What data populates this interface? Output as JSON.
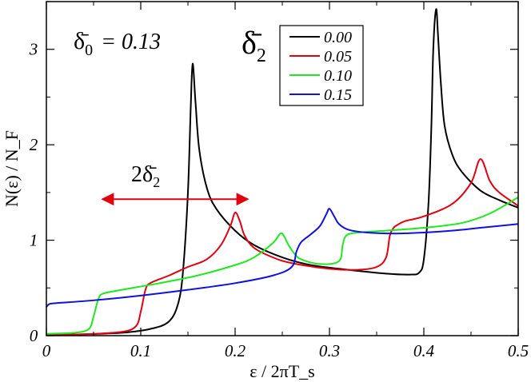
{
  "chart_data": {
    "type": "line",
    "xlabel": "ε / 2πT_s",
    "ylabel": "N(ε) / N_F",
    "xlim": [
      0,
      0.5
    ],
    "ylim": [
      0,
      3.5
    ],
    "x_ticks": [
      "0",
      "0.1",
      "0.2",
      "0.3",
      "0.4",
      "0.5"
    ],
    "y_ticks": [
      "0",
      "1",
      "2",
      "3"
    ],
    "x_tick_values": [
      0,
      0.1,
      0.2,
      0.3,
      0.4,
      0.5
    ],
    "y_tick_values": [
      0,
      1,
      2,
      3
    ],
    "grid": false,
    "legend_position": "top-right",
    "legend_title": "δ̄₂",
    "annotations": {
      "delta0_symbol": "δ̄",
      "delta0_sub": "0",
      "delta0_value": "= 0.13",
      "legend_symbol": "δ̄",
      "legend_sub": "2",
      "arrow_label_prefix": "2",
      "arrow_label_symbol": "δ̄",
      "arrow_label_sub": "2",
      "arrow_from_x": 0.1,
      "arrow_to_x": 0.2,
      "arrow_y": 1.43
    },
    "series": [
      {
        "name": "0.00",
        "color": "#000000",
        "x": [
          0,
          0.04,
          0.08,
          0.11,
          0.13,
          0.14,
          0.145,
          0.15,
          0.153,
          0.155,
          0.158,
          0.162,
          0.17,
          0.18,
          0.2,
          0.22,
          0.25,
          0.28,
          0.32,
          0.36,
          0.385,
          0.395,
          0.4,
          0.405,
          0.408,
          0.41,
          0.413,
          0.415,
          0.418,
          0.422,
          0.43,
          0.44,
          0.46,
          0.48,
          0.5
        ],
        "y": [
          0.01,
          0.015,
          0.03,
          0.07,
          0.15,
          0.35,
          0.7,
          1.5,
          2.4,
          2.85,
          2.45,
          1.95,
          1.55,
          1.33,
          1.1,
          0.95,
          0.82,
          0.74,
          0.69,
          0.65,
          0.64,
          0.66,
          0.8,
          1.4,
          2.2,
          3.0,
          3.42,
          3.15,
          2.65,
          2.2,
          1.9,
          1.72,
          1.52,
          1.42,
          1.34
        ]
      },
      {
        "name": "0.05",
        "color": "#e0000f",
        "x": [
          0,
          0.04,
          0.08,
          0.095,
          0.1,
          0.105,
          0.11,
          0.13,
          0.15,
          0.17,
          0.185,
          0.195,
          0.2,
          0.205,
          0.21,
          0.22,
          0.24,
          0.26,
          0.3,
          0.33,
          0.35,
          0.36,
          0.364,
          0.368,
          0.372,
          0.38,
          0.4,
          0.43,
          0.45,
          0.46,
          0.47,
          0.48,
          0.5
        ],
        "y": [
          0.01,
          0.015,
          0.04,
          0.1,
          0.25,
          0.48,
          0.55,
          0.63,
          0.72,
          0.8,
          0.95,
          1.15,
          1.29,
          1.2,
          1.05,
          0.92,
          0.82,
          0.76,
          0.7,
          0.69,
          0.72,
          0.82,
          1.05,
          1.13,
          1.16,
          1.2,
          1.25,
          1.38,
          1.6,
          1.85,
          1.62,
          1.5,
          1.36
        ]
      },
      {
        "name": "0.10",
        "color": "#1ee81e",
        "x": [
          0,
          0.03,
          0.045,
          0.05,
          0.055,
          0.06,
          0.08,
          0.12,
          0.16,
          0.2,
          0.22,
          0.24,
          0.248,
          0.252,
          0.256,
          0.262,
          0.27,
          0.29,
          0.31,
          0.314,
          0.318,
          0.33,
          0.36,
          0.4,
          0.44,
          0.47,
          0.5
        ],
        "y": [
          0.02,
          0.03,
          0.07,
          0.2,
          0.38,
          0.44,
          0.48,
          0.55,
          0.63,
          0.74,
          0.82,
          0.97,
          1.07,
          1.04,
          0.96,
          0.87,
          0.8,
          0.75,
          0.78,
          0.95,
          1.05,
          1.08,
          1.1,
          1.13,
          1.18,
          1.28,
          1.45
        ]
      },
      {
        "name": "0.15",
        "color": "#1010e0",
        "x": [
          0,
          0.003,
          0.01,
          0.05,
          0.1,
          0.15,
          0.2,
          0.24,
          0.26,
          0.265,
          0.27,
          0.28,
          0.29,
          0.297,
          0.3,
          0.305,
          0.31,
          0.32,
          0.34,
          0.37,
          0.4,
          0.43,
          0.46,
          0.5
        ],
        "y": [
          0.3,
          0.33,
          0.34,
          0.37,
          0.42,
          0.48,
          0.55,
          0.63,
          0.72,
          0.88,
          0.98,
          1.06,
          1.15,
          1.28,
          1.33,
          1.25,
          1.17,
          1.11,
          1.08,
          1.07,
          1.08,
          1.1,
          1.13,
          1.17
        ]
      }
    ]
  }
}
